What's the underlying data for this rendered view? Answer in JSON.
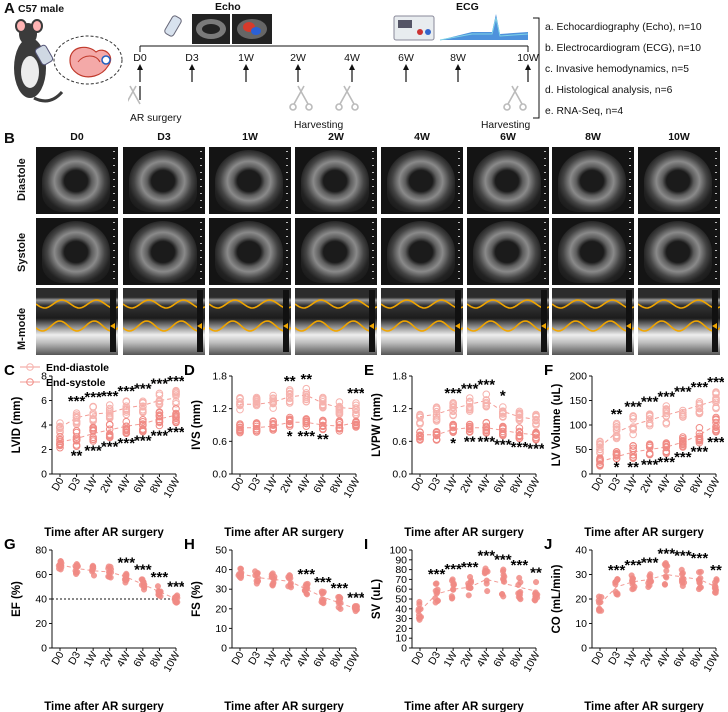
{
  "panelA": {
    "label": "A",
    "mouse_label": "C57 male",
    "echo_label": "Echo",
    "ecg_label": "ECG",
    "timepoints": [
      "D0",
      "D3",
      "1W",
      "2W",
      "4W",
      "6W",
      "8W",
      "10W"
    ],
    "ar_surgery": "AR surgery",
    "harvesting1": "Harvesting",
    "harvesting2": "Harvesting",
    "list": [
      "a. Echocardiography (Echo), n=10",
      "b. Electrocardiogram (ECG), n=10",
      "c. Invasive hemodynamics, n=5",
      "d. Histological analysis, n=6",
      "e. RNA-Seq, n=4"
    ]
  },
  "panelB": {
    "label": "B",
    "columns": [
      "D0",
      "D3",
      "1W",
      "2W",
      "4W",
      "6W",
      "8W",
      "10W"
    ],
    "rows": [
      "Diastole",
      "Systole",
      "M-mode"
    ]
  },
  "legend": {
    "diastole": "End-diastole",
    "systole": "End-systole"
  },
  "xlabel": "Time after AR surgery",
  "colors": {
    "dot": "#f08a84",
    "dot_light": "#f6b2ad",
    "line": "#f29b95",
    "mmode": "#f0a500"
  },
  "chart_data": [
    {
      "panel": "C",
      "type": "scatter",
      "ylabel": "LVID (mm)",
      "ylim": [
        0,
        8
      ],
      "yticks": [
        0,
        2,
        4,
        6,
        8
      ],
      "categories": [
        "D0",
        "D3",
        "1W",
        "2W",
        "4W",
        "6W",
        "8W",
        "10W"
      ],
      "series": [
        {
          "name": "End-diastole",
          "mean": [
            3.8,
            4.6,
            4.9,
            5.0,
            5.4,
            5.6,
            6.0,
            6.2
          ],
          "sd": [
            0.3,
            0.4,
            0.4,
            0.4,
            0.4,
            0.4,
            0.4,
            0.4
          ]
        },
        {
          "name": "End-systole",
          "mean": [
            2.6,
            2.9,
            3.3,
            3.6,
            3.9,
            4.1,
            4.5,
            4.8
          ],
          "sd": [
            0.3,
            0.4,
            0.4,
            0.4,
            0.4,
            0.4,
            0.4,
            0.4
          ]
        }
      ],
      "sig_top": [
        "",
        "***",
        "***",
        "***",
        "***",
        "***",
        "***",
        "***"
      ],
      "sig_bottom": [
        "",
        "**",
        "***",
        "***",
        "***",
        "***",
        "***",
        "***"
      ]
    },
    {
      "panel": "D",
      "type": "scatter",
      "ylabel": "IVS (mm)",
      "ylim": [
        0,
        1.8
      ],
      "yticks": [
        0.0,
        0.6,
        1.2,
        1.8
      ],
      "categories": [
        "D0",
        "D3",
        "1W",
        "2W",
        "4W",
        "6W",
        "8W",
        "10W"
      ],
      "series": [
        {
          "name": "End-diastole",
          "mean": [
            1.28,
            1.28,
            1.32,
            1.42,
            1.45,
            1.3,
            1.22,
            1.2
          ],
          "sd": [
            0.08,
            0.08,
            0.08,
            0.08,
            0.08,
            0.08,
            0.08,
            0.08
          ]
        },
        {
          "name": "End-systole",
          "mean": [
            0.85,
            0.85,
            0.88,
            0.95,
            0.95,
            0.9,
            0.88,
            0.95
          ],
          "sd": [
            0.06,
            0.06,
            0.06,
            0.06,
            0.06,
            0.06,
            0.06,
            0.06
          ]
        }
      ],
      "sig_top": [
        "",
        "",
        "",
        "**",
        "**",
        "",
        "",
        "***"
      ],
      "sig_bottom": [
        "",
        "",
        "",
        "*",
        "***",
        "**",
        "",
        ""
      ]
    },
    {
      "panel": "E",
      "type": "scatter",
      "ylabel": "LVPW (mm)",
      "ylim": [
        0,
        1.8
      ],
      "yticks": [
        0.0,
        0.6,
        1.2,
        1.8
      ],
      "categories": [
        "D0",
        "D3",
        "1W",
        "2W",
        "4W",
        "6W",
        "8W",
        "10W"
      ],
      "series": [
        {
          "name": "End-diastole",
          "mean": [
            1.05,
            1.1,
            1.2,
            1.28,
            1.35,
            1.15,
            1.05,
            1.0
          ],
          "sd": [
            0.08,
            0.08,
            0.08,
            0.08,
            0.08,
            0.08,
            0.08,
            0.08
          ]
        },
        {
          "name": "End-systole",
          "mean": [
            0.72,
            0.72,
            0.82,
            0.85,
            0.85,
            0.8,
            0.75,
            0.72
          ],
          "sd": [
            0.06,
            0.06,
            0.06,
            0.06,
            0.06,
            0.06,
            0.06,
            0.06
          ]
        }
      ],
      "sig_top": [
        "",
        "",
        "***",
        "***",
        "***",
        "*",
        "",
        ""
      ],
      "sig_bottom": [
        "",
        "",
        "*",
        "**",
        "***",
        "***",
        "***",
        "***"
      ]
    },
    {
      "panel": "F",
      "type": "scatter",
      "ylabel": "LV Volume (uL)",
      "ylim": [
        0,
        200
      ],
      "yticks": [
        0,
        50,
        100,
        150,
        200
      ],
      "categories": [
        "D0",
        "D3",
        "1W",
        "2W",
        "4W",
        "6W",
        "8W",
        "10W"
      ],
      "series": [
        {
          "name": "End-diastole",
          "mean": [
            55,
            85,
            100,
            110,
            120,
            130,
            140,
            150
          ],
          "sd": [
            8,
            12,
            12,
            12,
            12,
            12,
            12,
            12
          ]
        },
        {
          "name": "End-systole",
          "mean": [
            25,
            35,
            45,
            50,
            55,
            65,
            80,
            100
          ],
          "sd": [
            6,
            8,
            8,
            8,
            8,
            8,
            10,
            10
          ]
        }
      ],
      "sig_top": [
        "",
        "**",
        "***",
        "***",
        "***",
        "***",
        "***",
        "***"
      ],
      "sig_bottom": [
        "",
        "*",
        "**",
        "***",
        "***",
        "***",
        "***",
        "***"
      ]
    },
    {
      "panel": "G",
      "type": "scatter",
      "ylabel": "EF (%)",
      "ylim": [
        0,
        80
      ],
      "yticks": [
        0,
        20,
        40,
        60,
        80
      ],
      "reference_line": 40,
      "categories": [
        "D0",
        "D3",
        "1W",
        "2W",
        "4W",
        "6W",
        "8W",
        "10W"
      ],
      "series": [
        {
          "name": "",
          "mean": [
            68,
            65,
            63,
            62,
            58,
            52,
            46,
            40
          ],
          "sd": [
            3,
            3,
            3,
            3,
            3,
            3,
            3,
            2
          ]
        }
      ],
      "sig_top": [
        "",
        "",
        "",
        "",
        "***",
        "***",
        "***",
        "***"
      ]
    },
    {
      "panel": "H",
      "type": "scatter",
      "ylabel": "FS (%)",
      "ylim": [
        0,
        50
      ],
      "yticks": [
        0,
        10,
        20,
        30,
        40,
        50
      ],
      "categories": [
        "D0",
        "D3",
        "1W",
        "2W",
        "4W",
        "6W",
        "8W",
        "10W"
      ],
      "series": [
        {
          "name": "",
          "mean": [
            38,
            36,
            35,
            34,
            30,
            26,
            23,
            20
          ],
          "sd": [
            2,
            2,
            2,
            2,
            2,
            2,
            2,
            1
          ]
        }
      ],
      "sig_top": [
        "",
        "",
        "",
        "",
        "***",
        "***",
        "***",
        "***"
      ]
    },
    {
      "panel": "I",
      "type": "scatter",
      "ylabel": "SV (uL)",
      "ylim": [
        0,
        100
      ],
      "yticks": [
        0,
        10,
        20,
        30,
        40,
        50,
        60,
        70,
        80,
        90,
        100
      ],
      "categories": [
        "D0",
        "D3",
        "1W",
        "2W",
        "4W",
        "6W",
        "8W",
        "10W"
      ],
      "series": [
        {
          "name": "",
          "mean": [
            38,
            55,
            60,
            62,
            70,
            66,
            62,
            58
          ],
          "sd": [
            6,
            7,
            7,
            7,
            9,
            9,
            8,
            6
          ]
        }
      ],
      "sig_top": [
        "",
        "***",
        "***",
        "***",
        "***",
        "***",
        "***",
        "**"
      ]
    },
    {
      "panel": "J",
      "type": "scatter",
      "ylabel": "CO (mL/min)",
      "ylim": [
        0,
        40
      ],
      "yticks": [
        0,
        10,
        20,
        30,
        40
      ],
      "categories": [
        "D0",
        "D3",
        "1W",
        "2W",
        "4W",
        "6W",
        "8W",
        "10W"
      ],
      "series": [
        {
          "name": "",
          "mean": [
            18,
            25,
            27,
            28,
            30,
            29,
            28,
            25
          ],
          "sd": [
            2,
            2,
            2,
            2,
            3,
            3,
            3,
            2
          ]
        }
      ],
      "sig_top": [
        "",
        "***",
        "***",
        "***",
        "***",
        "***",
        "***",
        "**"
      ]
    }
  ]
}
